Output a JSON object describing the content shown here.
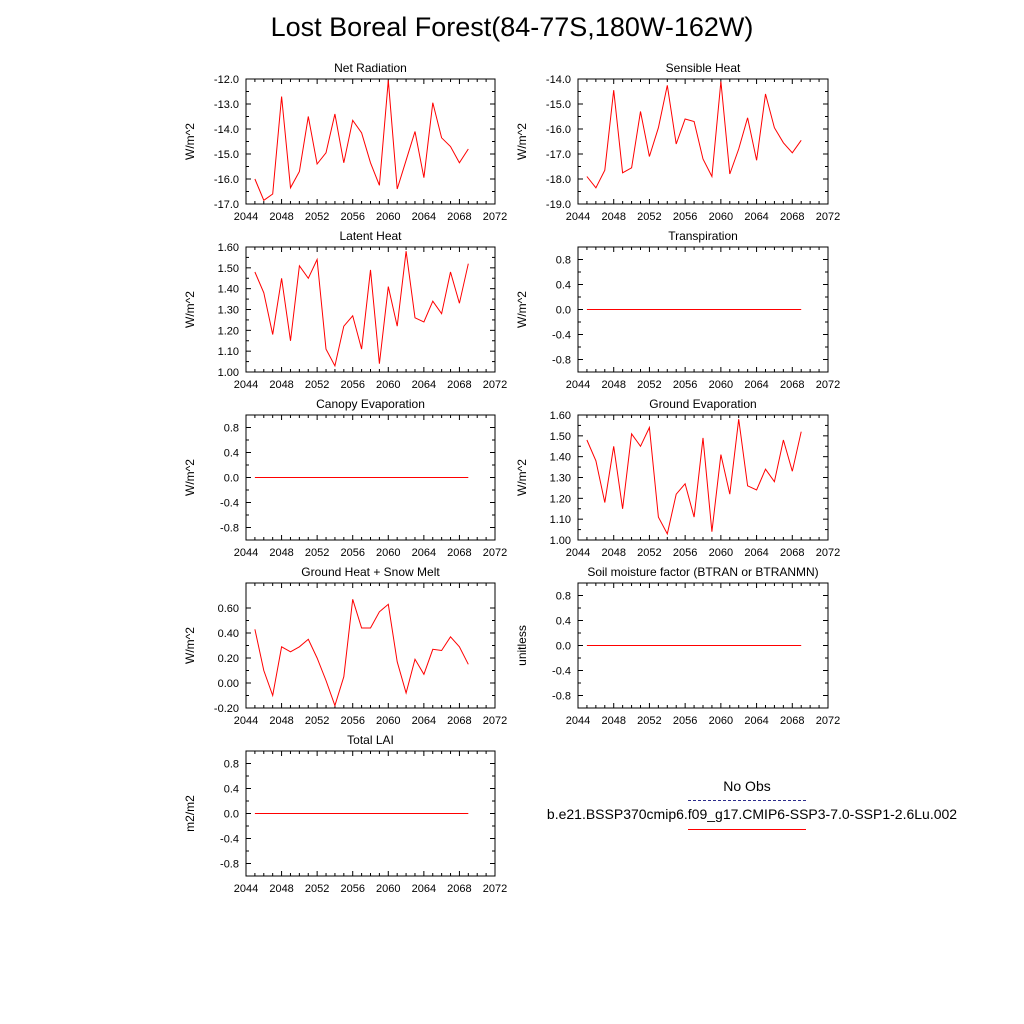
{
  "page_title": "Lost Boreal Forest(84-77S,180W-162W)",
  "legend": {
    "obs_label": "No Obs",
    "model_label": "b.e21.BSSP370cmip6.f09_g17.CMIP6-SSP3-7.0-SSP1-2.6Lu.002",
    "obs_color": "#2b2b8c",
    "model_color": "#ff0000"
  },
  "chart_data": [
    {
      "type": "line",
      "title": "Net Radiation",
      "xlabel": "",
      "ylabel": "W/m^2",
      "xlim": [
        2044,
        2072
      ],
      "ylim": [
        -17.0,
        -12.0
      ],
      "xticks": [
        "2044",
        "2048",
        "2052",
        "2056",
        "2060",
        "2064",
        "2068",
        "2072"
      ],
      "yticks": [
        "-17.0",
        "-16.0",
        "-15.0",
        "-14.0",
        "-13.0",
        "-12.0"
      ],
      "x": [
        2045,
        2046,
        2047,
        2048,
        2049,
        2050,
        2051,
        2052,
        2053,
        2054,
        2055,
        2056,
        2057,
        2058,
        2059,
        2060,
        2061,
        2062,
        2063,
        2064,
        2065,
        2066,
        2067,
        2068,
        2069
      ],
      "values": [
        -16.0,
        -16.85,
        -16.6,
        -12.7,
        -16.35,
        -15.7,
        -13.5,
        -15.4,
        -14.95,
        -13.4,
        -15.35,
        -13.65,
        -14.15,
        -15.35,
        -16.25,
        -12.05,
        -16.4,
        -15.25,
        -14.1,
        -15.95,
        -12.95,
        -14.35,
        -14.7,
        -15.35,
        -14.8
      ],
      "color": "#ff0000",
      "grid": false
    },
    {
      "type": "line",
      "title": "Sensible Heat",
      "xlabel": "",
      "ylabel": "W/m^2",
      "xlim": [
        2044,
        2072
      ],
      "ylim": [
        -19.0,
        -14.0
      ],
      "xticks": [
        "2044",
        "2048",
        "2052",
        "2056",
        "2060",
        "2064",
        "2068",
        "2072"
      ],
      "yticks": [
        "-19.0",
        "-18.0",
        "-17.0",
        "-16.0",
        "-15.0",
        "-14.0"
      ],
      "x": [
        2045,
        2046,
        2047,
        2048,
        2049,
        2050,
        2051,
        2052,
        2053,
        2054,
        2055,
        2056,
        2057,
        2058,
        2059,
        2060,
        2061,
        2062,
        2063,
        2064,
        2065,
        2066,
        2067,
        2068,
        2069
      ],
      "values": [
        -17.9,
        -18.35,
        -17.65,
        -14.45,
        -17.75,
        -17.55,
        -15.3,
        -17.1,
        -15.95,
        -14.25,
        -16.6,
        -15.6,
        -15.7,
        -17.2,
        -17.9,
        -14.1,
        -17.8,
        -16.8,
        -15.55,
        -17.25,
        -14.6,
        -15.95,
        -16.55,
        -16.95,
        -16.45
      ],
      "color": "#ff0000",
      "grid": false
    },
    {
      "type": "line",
      "title": "Latent Heat",
      "xlabel": "",
      "ylabel": "W/m^2",
      "xlim": [
        2044,
        2072
      ],
      "ylim": [
        1.0,
        1.6
      ],
      "xticks": [
        "2044",
        "2048",
        "2052",
        "2056",
        "2060",
        "2064",
        "2068",
        "2072"
      ],
      "yticks": [
        "1.00",
        "1.10",
        "1.20",
        "1.30",
        "1.40",
        "1.50",
        "1.60"
      ],
      "x": [
        2045,
        2046,
        2047,
        2048,
        2049,
        2050,
        2051,
        2052,
        2053,
        2054,
        2055,
        2056,
        2057,
        2058,
        2059,
        2060,
        2061,
        2062,
        2063,
        2064,
        2065,
        2066,
        2067,
        2068,
        2069
      ],
      "values": [
        1.48,
        1.38,
        1.18,
        1.45,
        1.15,
        1.51,
        1.45,
        1.54,
        1.11,
        1.03,
        1.22,
        1.27,
        1.11,
        1.49,
        1.04,
        1.41,
        1.22,
        1.58,
        1.26,
        1.24,
        1.34,
        1.28,
        1.48,
        1.33,
        1.52
      ],
      "color": "#ff0000",
      "grid": false
    },
    {
      "type": "line",
      "title": "Transpiration",
      "xlabel": "",
      "ylabel": "W/m^2",
      "xlim": [
        2044,
        2072
      ],
      "ylim": [
        -1.0,
        1.0
      ],
      "xticks": [
        "2044",
        "2048",
        "2052",
        "2056",
        "2060",
        "2064",
        "2068",
        "2072"
      ],
      "yticks": [
        "-0.8",
        "-0.4",
        "0.0",
        "0.4",
        "0.8"
      ],
      "x": [
        2045,
        2046,
        2047,
        2048,
        2049,
        2050,
        2051,
        2052,
        2053,
        2054,
        2055,
        2056,
        2057,
        2058,
        2059,
        2060,
        2061,
        2062,
        2063,
        2064,
        2065,
        2066,
        2067,
        2068,
        2069
      ],
      "values": [
        0,
        0,
        0,
        0,
        0,
        0,
        0,
        0,
        0,
        0,
        0,
        0,
        0,
        0,
        0,
        0,
        0,
        0,
        0,
        0,
        0,
        0,
        0,
        0,
        0
      ],
      "color": "#ff0000",
      "grid": false
    },
    {
      "type": "line",
      "title": "Canopy Evaporation",
      "xlabel": "",
      "ylabel": "W/m^2",
      "xlim": [
        2044,
        2072
      ],
      "ylim": [
        -1.0,
        1.0
      ],
      "xticks": [
        "2044",
        "2048",
        "2052",
        "2056",
        "2060",
        "2064",
        "2068",
        "2072"
      ],
      "yticks": [
        "-0.8",
        "-0.4",
        "0.0",
        "0.4",
        "0.8"
      ],
      "x": [
        2045,
        2046,
        2047,
        2048,
        2049,
        2050,
        2051,
        2052,
        2053,
        2054,
        2055,
        2056,
        2057,
        2058,
        2059,
        2060,
        2061,
        2062,
        2063,
        2064,
        2065,
        2066,
        2067,
        2068,
        2069
      ],
      "values": [
        0,
        0,
        0,
        0,
        0,
        0,
        0,
        0,
        0,
        0,
        0,
        0,
        0,
        0,
        0,
        0,
        0,
        0,
        0,
        0,
        0,
        0,
        0,
        0,
        0
      ],
      "color": "#ff0000",
      "grid": false
    },
    {
      "type": "line",
      "title": "Ground Evaporation",
      "xlabel": "",
      "ylabel": "W/m^2",
      "xlim": [
        2044,
        2072
      ],
      "ylim": [
        1.0,
        1.6
      ],
      "xticks": [
        "2044",
        "2048",
        "2052",
        "2056",
        "2060",
        "2064",
        "2068",
        "2072"
      ],
      "yticks": [
        "1.00",
        "1.10",
        "1.20",
        "1.30",
        "1.40",
        "1.50",
        "1.60"
      ],
      "x": [
        2045,
        2046,
        2047,
        2048,
        2049,
        2050,
        2051,
        2052,
        2053,
        2054,
        2055,
        2056,
        2057,
        2058,
        2059,
        2060,
        2061,
        2062,
        2063,
        2064,
        2065,
        2066,
        2067,
        2068,
        2069
      ],
      "values": [
        1.48,
        1.38,
        1.18,
        1.45,
        1.15,
        1.51,
        1.45,
        1.54,
        1.11,
        1.03,
        1.22,
        1.27,
        1.11,
        1.49,
        1.04,
        1.41,
        1.22,
        1.58,
        1.26,
        1.24,
        1.34,
        1.28,
        1.48,
        1.33,
        1.52
      ],
      "color": "#ff0000",
      "grid": false
    },
    {
      "type": "line",
      "title": "Ground Heat + Snow Melt",
      "xlabel": "",
      "ylabel": "W/m^2",
      "xlim": [
        2044,
        2072
      ],
      "ylim": [
        -0.2,
        0.8
      ],
      "xticks": [
        "2044",
        "2048",
        "2052",
        "2056",
        "2060",
        "2064",
        "2068",
        "2072"
      ],
      "yticks": [
        "-0.20",
        "0.00",
        "0.20",
        "0.40",
        "0.60"
      ],
      "x": [
        2045,
        2046,
        2047,
        2048,
        2049,
        2050,
        2051,
        2052,
        2053,
        2054,
        2055,
        2056,
        2057,
        2058,
        2059,
        2060,
        2061,
        2062,
        2063,
        2064,
        2065,
        2066,
        2067,
        2068,
        2069
      ],
      "values": [
        0.43,
        0.1,
        -0.1,
        0.29,
        0.25,
        0.29,
        0.35,
        0.2,
        0.02,
        -0.18,
        0.05,
        0.67,
        0.44,
        0.44,
        0.57,
        0.63,
        0.17,
        -0.08,
        0.19,
        0.07,
        0.27,
        0.26,
        0.37,
        0.29,
        0.15
      ],
      "color": "#ff0000",
      "grid": false
    },
    {
      "type": "line",
      "title": "Soil moisture factor (BTRAN or BTRANMN)",
      "xlabel": "",
      "ylabel": "unitless",
      "xlim": [
        2044,
        2072
      ],
      "ylim": [
        -1.0,
        1.0
      ],
      "xticks": [
        "2044",
        "2048",
        "2052",
        "2056",
        "2060",
        "2064",
        "2068",
        "2072"
      ],
      "yticks": [
        "-0.8",
        "-0.4",
        "0.0",
        "0.4",
        "0.8"
      ],
      "x": [
        2045,
        2046,
        2047,
        2048,
        2049,
        2050,
        2051,
        2052,
        2053,
        2054,
        2055,
        2056,
        2057,
        2058,
        2059,
        2060,
        2061,
        2062,
        2063,
        2064,
        2065,
        2066,
        2067,
        2068,
        2069
      ],
      "values": [
        0,
        0,
        0,
        0,
        0,
        0,
        0,
        0,
        0,
        0,
        0,
        0,
        0,
        0,
        0,
        0,
        0,
        0,
        0,
        0,
        0,
        0,
        0,
        0,
        0
      ],
      "color": "#ff0000",
      "grid": false
    },
    {
      "type": "line",
      "title": "Total LAI",
      "xlabel": "",
      "ylabel": "m2/m2",
      "xlim": [
        2044,
        2072
      ],
      "ylim": [
        -1.0,
        1.0
      ],
      "xticks": [
        "2044",
        "2048",
        "2052",
        "2056",
        "2060",
        "2064",
        "2068",
        "2072"
      ],
      "yticks": [
        "-0.8",
        "-0.4",
        "0.0",
        "0.4",
        "0.8"
      ],
      "x": [
        2045,
        2046,
        2047,
        2048,
        2049,
        2050,
        2051,
        2052,
        2053,
        2054,
        2055,
        2056,
        2057,
        2058,
        2059,
        2060,
        2061,
        2062,
        2063,
        2064,
        2065,
        2066,
        2067,
        2068,
        2069
      ],
      "values": [
        0,
        0,
        0,
        0,
        0,
        0,
        0,
        0,
        0,
        0,
        0,
        0,
        0,
        0,
        0,
        0,
        0,
        0,
        0,
        0,
        0,
        0,
        0,
        0,
        0
      ],
      "color": "#ff0000",
      "grid": false
    }
  ]
}
